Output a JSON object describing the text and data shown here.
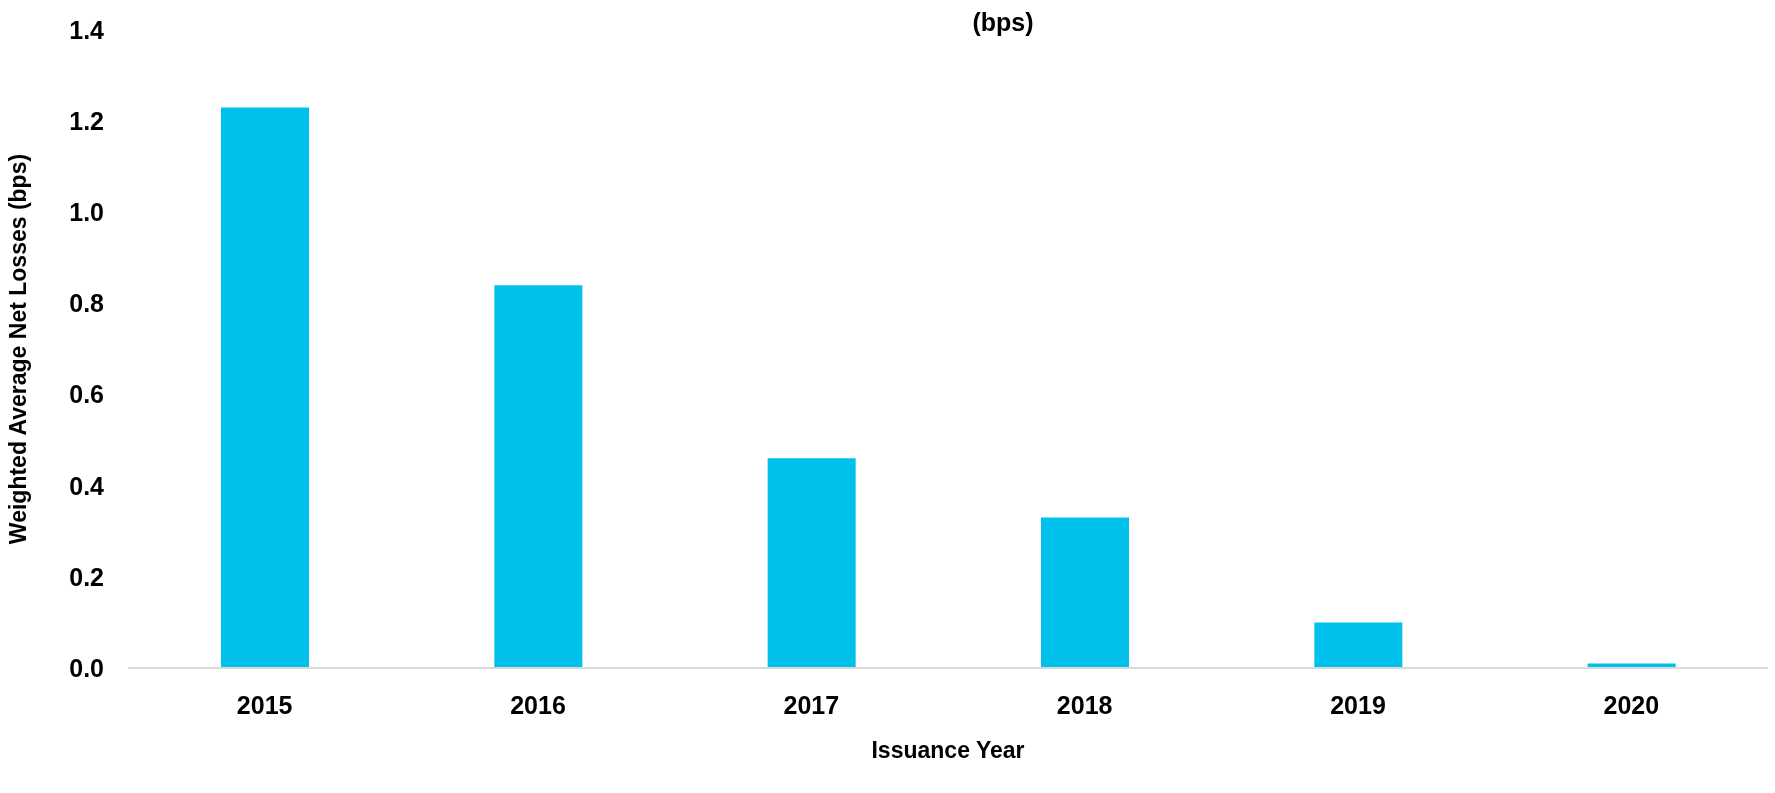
{
  "chart_data": {
    "type": "bar",
    "title": "(bps)",
    "xlabel": "Issuance Year",
    "ylabel": "Weighted Average Net Losses (bps)",
    "categories": [
      "2015",
      "2016",
      "2017",
      "2018",
      "2019",
      "2020"
    ],
    "values": [
      1.23,
      0.84,
      0.46,
      0.33,
      0.1,
      0.01
    ],
    "color": "#00c0ec",
    "ylim": [
      0,
      1.4
    ],
    "yticks": [
      {
        "value": 0,
        "label": "0.0"
      },
      0.2,
      0.4,
      0.6,
      0.8,
      {
        "value": 1,
        "label": "1.0"
      },
      1.2,
      1.4
    ],
    "grid": false
  }
}
